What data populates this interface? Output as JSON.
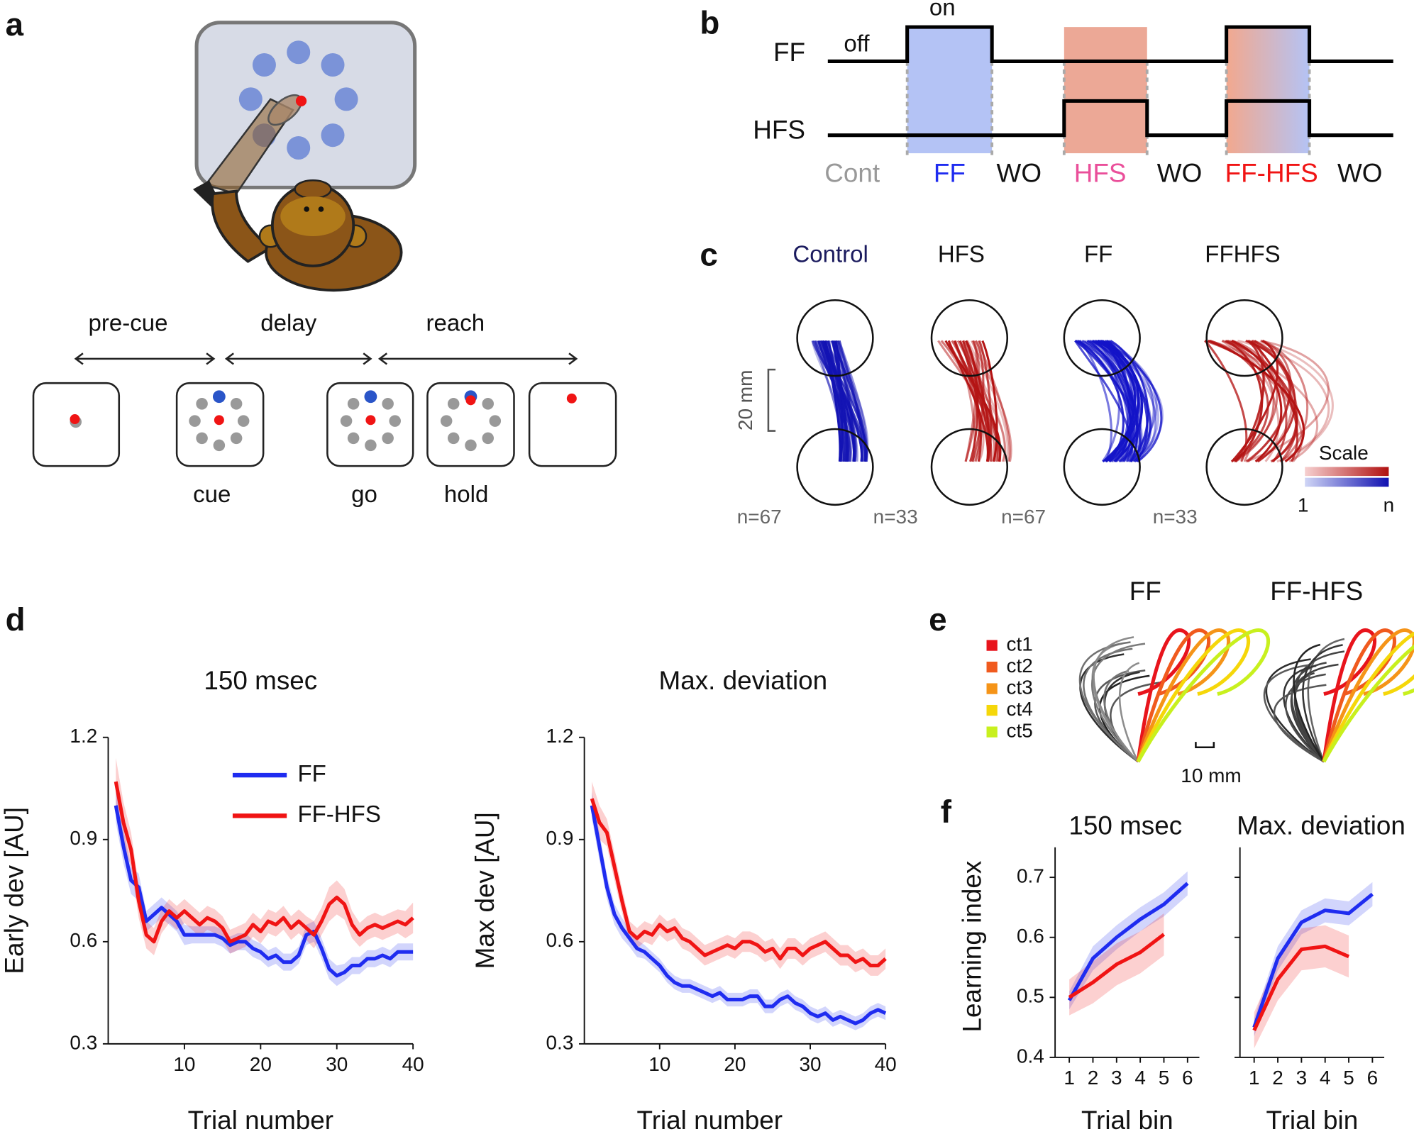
{
  "panels": {
    "a": {
      "label": "a",
      "phases": [
        "pre-cue",
        "delay",
        "reach"
      ],
      "events": [
        "cue",
        "go",
        "hold"
      ]
    },
    "b": {
      "label": "b",
      "on": "on",
      "off": "off",
      "traces": [
        "FF",
        "HFS"
      ],
      "conditions": [
        "Cont",
        "FF",
        "WO",
        "HFS",
        "WO",
        "FF-HFS",
        "WO"
      ]
    },
    "c": {
      "label": "c",
      "conditions": [
        "Control",
        "HFS",
        "FF",
        "FFHFS"
      ],
      "scale_bar": "20 mm",
      "counts": [
        "n=67",
        "n=33",
        "n=67",
        "n=33"
      ],
      "colorbar": {
        "title": "Scale",
        "min": "1",
        "max": "n"
      }
    },
    "d": {
      "label": "d"
    },
    "e": {
      "label": "e",
      "conditions": [
        "FF",
        "FF-HFS"
      ],
      "legend": [
        "ct1",
        "ct2",
        "ct3",
        "ct4",
        "ct5"
      ],
      "legend_colors": [
        "#e8141c",
        "#f05a1e",
        "#f59418",
        "#f5d70a",
        "#c8f01e"
      ],
      "scale_bar": "10 mm"
    },
    "f": {
      "label": "f"
    }
  },
  "chart_data": [
    {
      "type": "line",
      "title": "150 msec",
      "xlabel": "Trial number",
      "ylabel": "Early dev [AU]",
      "legend": "top",
      "ytick_labels": true,
      "x": [
        1,
        2,
        3,
        4,
        5,
        6,
        7,
        8,
        9,
        10,
        11,
        12,
        13,
        14,
        15,
        16,
        17,
        18,
        19,
        20,
        21,
        22,
        23,
        24,
        25,
        26,
        27,
        28,
        29,
        30,
        31,
        32,
        33,
        34,
        35,
        36,
        37,
        38,
        39,
        40
      ],
      "xlim": [
        0,
        40
      ],
      "xticks": [
        10,
        20,
        30,
        40
      ],
      "ylim": [
        0.3,
        1.2
      ],
      "yticks": [
        0.3,
        0.6,
        0.9,
        1.2
      ],
      "series": [
        {
          "name": "FF",
          "color": "#1f2cf0",
          "values": [
            1.0,
            0.88,
            0.78,
            0.76,
            0.66,
            0.68,
            0.7,
            0.68,
            0.66,
            0.62,
            0.62,
            0.62,
            0.62,
            0.62,
            0.61,
            0.59,
            0.6,
            0.6,
            0.58,
            0.57,
            0.55,
            0.56,
            0.54,
            0.54,
            0.56,
            0.62,
            0.63,
            0.58,
            0.52,
            0.5,
            0.51,
            0.53,
            0.53,
            0.55,
            0.55,
            0.56,
            0.55,
            0.57,
            0.57,
            0.57
          ],
          "errors": [
            0.05,
            0.05,
            0.04,
            0.04,
            0.03,
            0.03,
            0.03,
            0.03,
            0.03,
            0.03,
            0.025,
            0.025,
            0.025,
            0.025,
            0.025,
            0.025,
            0.025,
            0.025,
            0.025,
            0.025,
            0.025,
            0.025,
            0.025,
            0.025,
            0.025,
            0.03,
            0.03,
            0.03,
            0.03,
            0.03,
            0.025,
            0.025,
            0.025,
            0.025,
            0.025,
            0.025,
            0.025,
            0.025,
            0.025,
            0.025
          ]
        },
        {
          "name": "FF-HFS",
          "color": "#f01414",
          "values": [
            1.07,
            0.95,
            0.87,
            0.72,
            0.62,
            0.6,
            0.66,
            0.69,
            0.67,
            0.69,
            0.67,
            0.65,
            0.67,
            0.66,
            0.64,
            0.6,
            0.61,
            0.62,
            0.65,
            0.63,
            0.66,
            0.65,
            0.67,
            0.64,
            0.66,
            0.64,
            0.62,
            0.66,
            0.71,
            0.73,
            0.71,
            0.65,
            0.62,
            0.64,
            0.65,
            0.64,
            0.65,
            0.66,
            0.65,
            0.67
          ],
          "errors": [
            0.07,
            0.06,
            0.05,
            0.05,
            0.04,
            0.04,
            0.035,
            0.035,
            0.035,
            0.035,
            0.035,
            0.035,
            0.035,
            0.035,
            0.035,
            0.035,
            0.035,
            0.035,
            0.035,
            0.035,
            0.035,
            0.035,
            0.035,
            0.035,
            0.035,
            0.035,
            0.04,
            0.04,
            0.05,
            0.05,
            0.045,
            0.04,
            0.035,
            0.035,
            0.035,
            0.035,
            0.035,
            0.035,
            0.04,
            0.045
          ]
        }
      ]
    },
    {
      "type": "line",
      "title": "Max. deviation",
      "xlabel": "Trial number",
      "ylabel": "Max dev [AU]",
      "ytick_labels": true,
      "x": [
        1,
        2,
        3,
        4,
        5,
        6,
        7,
        8,
        9,
        10,
        11,
        12,
        13,
        14,
        15,
        16,
        17,
        18,
        19,
        20,
        21,
        22,
        23,
        24,
        25,
        26,
        27,
        28,
        29,
        30,
        31,
        32,
        33,
        34,
        35,
        36,
        37,
        38,
        39,
        40
      ],
      "xlim": [
        0,
        40
      ],
      "xticks": [
        10,
        20,
        30,
        40
      ],
      "ylim": [
        0.3,
        1.2
      ],
      "yticks": [
        0.3,
        0.6,
        0.9,
        1.2
      ],
      "series": [
        {
          "name": "FF",
          "color": "#1f2cf0",
          "values": [
            1.0,
            0.88,
            0.76,
            0.68,
            0.64,
            0.61,
            0.58,
            0.57,
            0.55,
            0.53,
            0.5,
            0.48,
            0.47,
            0.47,
            0.46,
            0.45,
            0.44,
            0.45,
            0.43,
            0.43,
            0.43,
            0.44,
            0.44,
            0.41,
            0.41,
            0.43,
            0.44,
            0.42,
            0.41,
            0.39,
            0.38,
            0.39,
            0.37,
            0.38,
            0.37,
            0.36,
            0.37,
            0.39,
            0.4,
            0.39
          ],
          "errors": [
            0.04,
            0.04,
            0.035,
            0.03,
            0.03,
            0.025,
            0.025,
            0.02,
            0.02,
            0.02,
            0.02,
            0.02,
            0.02,
            0.02,
            0.02,
            0.02,
            0.02,
            0.02,
            0.02,
            0.02,
            0.02,
            0.02,
            0.02,
            0.02,
            0.02,
            0.02,
            0.02,
            0.02,
            0.02,
            0.02,
            0.02,
            0.02,
            0.02,
            0.02,
            0.02,
            0.02,
            0.02,
            0.02,
            0.02,
            0.02
          ]
        },
        {
          "name": "FF-HFS",
          "color": "#f01414",
          "values": [
            1.02,
            0.95,
            0.92,
            0.82,
            0.72,
            0.63,
            0.61,
            0.63,
            0.62,
            0.65,
            0.63,
            0.64,
            0.61,
            0.6,
            0.58,
            0.56,
            0.57,
            0.58,
            0.59,
            0.58,
            0.6,
            0.6,
            0.59,
            0.57,
            0.58,
            0.55,
            0.58,
            0.58,
            0.56,
            0.58,
            0.59,
            0.6,
            0.58,
            0.56,
            0.56,
            0.54,
            0.55,
            0.53,
            0.53,
            0.55
          ],
          "errors": [
            0.05,
            0.05,
            0.04,
            0.04,
            0.035,
            0.03,
            0.03,
            0.03,
            0.03,
            0.03,
            0.03,
            0.03,
            0.03,
            0.03,
            0.03,
            0.03,
            0.03,
            0.03,
            0.03,
            0.03,
            0.03,
            0.03,
            0.03,
            0.03,
            0.03,
            0.03,
            0.03,
            0.03,
            0.03,
            0.03,
            0.03,
            0.03,
            0.03,
            0.03,
            0.03,
            0.03,
            0.03,
            0.03,
            0.03,
            0.03
          ]
        }
      ]
    },
    {
      "type": "line",
      "title": "150 msec",
      "xlabel": "Trial bin",
      "ylabel": "Learning index",
      "ytick_labels": true,
      "x": [
        1,
        2,
        3,
        4,
        5,
        6
      ],
      "xlim": [
        0.4,
        6.5
      ],
      "xticks": [
        1,
        2,
        3,
        4,
        5,
        6
      ],
      "ylim": [
        0.4,
        0.75
      ],
      "yticks": [
        0.4,
        0.5,
        0.6,
        0.7
      ],
      "series": [
        {
          "name": "FF",
          "color": "#1f2cf0",
          "values": [
            0.495,
            0.565,
            0.6,
            0.63,
            0.655,
            0.69
          ],
          "errors": [
            0.015,
            0.02,
            0.02,
            0.02,
            0.02,
            0.02
          ]
        },
        {
          "name": "FF-HFS",
          "color": "#f01414",
          "values": [
            0.5,
            0.525,
            0.555,
            0.575,
            0.605,
            null
          ],
          "errors": [
            0.03,
            0.035,
            0.035,
            0.035,
            0.035,
            null
          ]
        }
      ]
    },
    {
      "type": "line",
      "title": "Max. deviation",
      "xlabel": "Trial bin",
      "ytick_labels": false,
      "x": [
        1,
        2,
        3,
        4,
        5,
        6
      ],
      "xlim": [
        0.4,
        6.5
      ],
      "xticks": [
        1,
        2,
        3,
        4,
        5,
        6
      ],
      "ylim": [
        0.4,
        0.75
      ],
      "yticks": [
        0.4,
        0.5,
        0.6,
        0.7
      ],
      "series": [
        {
          "name": "FF",
          "color": "#1f2cf0",
          "values": [
            0.45,
            0.565,
            0.625,
            0.645,
            0.64,
            0.672
          ],
          "errors": [
            0.015,
            0.02,
            0.02,
            0.02,
            0.02,
            0.02
          ]
        },
        {
          "name": "FF-HFS",
          "color": "#f01414",
          "values": [
            0.445,
            0.53,
            0.58,
            0.585,
            0.568,
            null
          ],
          "errors": [
            0.03,
            0.035,
            0.035,
            0.035,
            0.035,
            null
          ]
        }
      ]
    }
  ]
}
